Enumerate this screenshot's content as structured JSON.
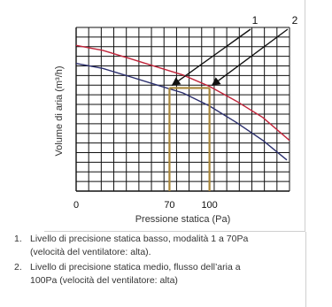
{
  "chart_data": {
    "type": "line",
    "xlabel": "Pressione statica (Pa)",
    "ylabel": "Volume di aria (m³/h)",
    "x_ticks": [
      {
        "label": "0",
        "value": 0
      },
      {
        "label": "70",
        "value": 70
      },
      {
        "label": "100",
        "value": 100
      }
    ],
    "grid": true,
    "series": [
      {
        "color": "#c0243a",
        "points": [
          [
            0,
            89
          ],
          [
            20,
            86
          ],
          [
            40,
            81
          ],
          [
            60,
            76
          ],
          [
            80,
            71
          ],
          [
            100,
            64
          ],
          [
            120,
            55
          ],
          [
            140,
            45
          ],
          [
            160,
            31
          ]
        ]
      },
      {
        "color": "#2b2f6e",
        "points": [
          [
            0,
            78
          ],
          [
            20,
            75
          ],
          [
            40,
            70
          ],
          [
            60,
            65
          ],
          [
            80,
            60
          ],
          [
            100,
            52
          ],
          [
            120,
            42
          ],
          [
            140,
            31
          ],
          [
            158,
            19
          ]
        ]
      }
    ],
    "markers": [
      {
        "label": "1",
        "x": 70,
        "y": 63
      },
      {
        "label": "2",
        "x": 100,
        "y": 63
      }
    ],
    "operating_line_color": "#a88639",
    "arrow_color": "#111111"
  },
  "notes": [
    {
      "num": "1.",
      "lines": [
        "Livello di precisione statica basso, modalità 1 a 70Pa",
        "(velocità del ventilatore: alta)."
      ]
    },
    {
      "num": "2.",
      "lines": [
        "Livello di precisione statica medio, flusso dell’aria a",
        "100Pa (velocità del ventilatore: alta)"
      ]
    }
  ]
}
